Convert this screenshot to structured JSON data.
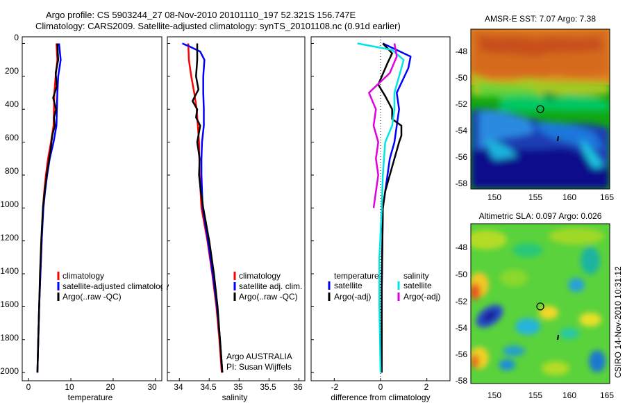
{
  "title_line1": "Argo profile: CS 5903244_27 08-Nov-2010 20101110_197 52.321S 156.747E",
  "title_line2": "Climatology: CARS2009. Satellite-adjusted climatology: synTS_20101108.nc (0.91d earlier)",
  "side_stamp": "CSIRO 14-Nov-2010 10:31:12",
  "colors": {
    "climatology": "#ff0000",
    "satellite": "#0000ff",
    "argo": "#000000",
    "salinity_sat": "#00e5e5",
    "salinity_argo": "#e000e0"
  },
  "chart_data": [
    {
      "type": "line",
      "xlabel": "temperature",
      "xlim": [
        -1.5,
        31.5
      ],
      "ylim": [
        2050,
        -40
      ],
      "x_ticks": [
        0,
        10,
        20,
        30
      ],
      "y_ticks": [
        0,
        200,
        400,
        600,
        800,
        1000,
        1200,
        1400,
        1600,
        1800,
        2000
      ],
      "legend": [
        "climatology",
        "satellite-adjusted climatology",
        "Argo(..raw -QC)"
      ],
      "series": [
        {
          "name": "climatology",
          "color": "#ff0000",
          "points": [
            [
              6.6,
              0
            ],
            [
              6.8,
              100
            ],
            [
              6.4,
              200
            ],
            [
              6.1,
              300
            ],
            [
              6.0,
              400
            ],
            [
              5.9,
              500
            ],
            [
              5.3,
              600
            ],
            [
              4.6,
              700
            ],
            [
              4.1,
              800
            ],
            [
              3.7,
              900
            ],
            [
              3.4,
              1000
            ],
            [
              3.1,
              1200
            ],
            [
              2.8,
              1400
            ],
            [
              2.5,
              1600
            ],
            [
              2.3,
              1800
            ],
            [
              2.1,
              2000
            ]
          ]
        },
        {
          "name": "satellite-adjusted climatology",
          "color": "#0000ff",
          "points": [
            [
              7.2,
              0
            ],
            [
              7.6,
              100
            ],
            [
              7.0,
              200
            ],
            [
              6.8,
              300
            ],
            [
              6.7,
              400
            ],
            [
              6.6,
              500
            ],
            [
              5.9,
              600
            ],
            [
              5.0,
              700
            ],
            [
              4.4,
              800
            ],
            [
              3.9,
              900
            ],
            [
              3.5,
              1000
            ],
            [
              3.1,
              1200
            ],
            [
              2.8,
              1400
            ],
            [
              2.5,
              1600
            ],
            [
              2.3,
              1800
            ],
            [
              2.1,
              2000
            ]
          ]
        },
        {
          "name": "Argo(..raw -QC)",
          "color": "#000000",
          "points": [
            [
              6.8,
              0
            ],
            [
              7.0,
              100
            ],
            [
              6.4,
              180
            ],
            [
              6.7,
              260
            ],
            [
              5.8,
              330
            ],
            [
              6.5,
              400
            ],
            [
              6.0,
              450
            ],
            [
              6.2,
              500
            ],
            [
              5.6,
              560
            ],
            [
              5.2,
              650
            ],
            [
              4.4,
              780
            ],
            [
              3.8,
              900
            ],
            [
              3.4,
              1000
            ],
            [
              3.0,
              1200
            ],
            [
              2.7,
              1400
            ],
            [
              2.5,
              1600
            ],
            [
              2.3,
              1800
            ],
            [
              2.1,
              2000
            ]
          ]
        }
      ]
    },
    {
      "type": "line",
      "xlabel": "salinity",
      "xlim": [
        33.8,
        36.1
      ],
      "ylim": [
        2050,
        -40
      ],
      "x_ticks": [
        34,
        34.5,
        35,
        35.5,
        36
      ],
      "legend": [
        "climatology",
        "satellite adj. clim.",
        "Argo(..raw -QC)"
      ],
      "annotation": [
        "Argo AUSTRALIA",
        "PI: Susan Wijffels"
      ],
      "series": [
        {
          "name": "climatology",
          "color": "#ff0000",
          "points": [
            [
              34.15,
              0
            ],
            [
              34.16,
              100
            ],
            [
              34.2,
              200
            ],
            [
              34.25,
              300
            ],
            [
              34.29,
              400
            ],
            [
              34.31,
              500
            ],
            [
              34.33,
              600
            ],
            [
              34.34,
              800
            ],
            [
              34.37,
              1000
            ],
            [
              34.47,
              1200
            ],
            [
              34.55,
              1400
            ],
            [
              34.62,
              1600
            ],
            [
              34.67,
              1800
            ],
            [
              34.71,
              2000
            ]
          ]
        },
        {
          "name": "satellite adj. clim.",
          "color": "#0000ff",
          "points": [
            [
              34.05,
              0
            ],
            [
              34.18,
              20
            ],
            [
              34.35,
              50
            ],
            [
              34.42,
              100
            ],
            [
              34.41,
              150
            ],
            [
              34.4,
              200
            ],
            [
              34.4,
              300
            ],
            [
              34.41,
              400
            ],
            [
              34.41,
              500
            ],
            [
              34.38,
              600
            ],
            [
              34.37,
              700
            ],
            [
              34.37,
              800
            ],
            [
              34.39,
              1000
            ],
            [
              34.48,
              1200
            ],
            [
              34.56,
              1400
            ],
            [
              34.63,
              1600
            ],
            [
              34.68,
              1800
            ],
            [
              34.72,
              2000
            ]
          ]
        },
        {
          "name": "Argo(..raw -QC)",
          "color": "#000000",
          "points": [
            [
              34.3,
              0
            ],
            [
              34.3,
              100
            ],
            [
              34.28,
              200
            ],
            [
              34.32,
              280
            ],
            [
              34.22,
              350
            ],
            [
              34.3,
              400
            ],
            [
              34.28,
              450
            ],
            [
              34.35,
              500
            ],
            [
              34.3,
              600
            ],
            [
              34.34,
              700
            ],
            [
              34.33,
              800
            ],
            [
              34.36,
              900
            ],
            [
              34.4,
              1000
            ],
            [
              34.45,
              1100
            ],
            [
              34.5,
              1200
            ],
            [
              34.58,
              1400
            ],
            [
              34.64,
              1600
            ],
            [
              34.68,
              1800
            ],
            [
              34.72,
              2000
            ]
          ]
        }
      ]
    },
    {
      "type": "line",
      "xlabel": "difference from climatology",
      "xlim": [
        -3,
        3
      ],
      "ylim": [
        2050,
        -40
      ],
      "x_ticks": [
        -2,
        0,
        2
      ],
      "legend_left": {
        "header": "temperature",
        "items": [
          "satellite",
          "Argo(-adj)"
        ]
      },
      "legend_right": {
        "header": "salinity",
        "items": [
          "satellite",
          "Argo(-adj)"
        ]
      },
      "series": [
        {
          "name": "temperature satellite",
          "color": "#0000ff",
          "points": [
            [
              0.1,
              0
            ],
            [
              1.3,
              80
            ],
            [
              1.2,
              150
            ],
            [
              0.7,
              300
            ],
            [
              0.8,
              400
            ],
            [
              0.7,
              500
            ],
            [
              0.6,
              600
            ],
            [
              0.4,
              700
            ],
            [
              0.3,
              800
            ],
            [
              0.2,
              900
            ],
            [
              0.1,
              1000
            ],
            [
              0.05,
              1500
            ],
            [
              0.05,
              2000
            ]
          ]
        },
        {
          "name": "temperature Argo(-adj)",
          "color": "#000000",
          "points": [
            [
              0.1,
              0
            ],
            [
              0.5,
              60
            ],
            [
              0.3,
              120
            ],
            [
              -0.1,
              250
            ],
            [
              0.2,
              320
            ],
            [
              0.5,
              400
            ],
            [
              0.5,
              460
            ],
            [
              0.9,
              500
            ],
            [
              0.9,
              560
            ],
            [
              0.8,
              600
            ],
            [
              0.6,
              700
            ],
            [
              0.4,
              800
            ],
            [
              0.2,
              900
            ],
            [
              0.1,
              1000
            ],
            [
              0.05,
              1500
            ],
            [
              0.05,
              2000
            ]
          ]
        },
        {
          "name": "salinity satellite",
          "color": "#00e5e5",
          "points": [
            [
              -1.0,
              0
            ],
            [
              0.5,
              40
            ],
            [
              1.0,
              100
            ],
            [
              0.8,
              200
            ],
            [
              0.6,
              300
            ],
            [
              0.6,
              400
            ],
            [
              0.5,
              500
            ],
            [
              0.2,
              600
            ],
            [
              0.1,
              800
            ],
            [
              0.05,
              1000
            ],
            [
              -0.05,
              1300
            ],
            [
              -0.05,
              1600
            ],
            [
              0,
              2000
            ]
          ]
        },
        {
          "name": "salinity Argo(-adj)",
          "color": "#e000e0",
          "points": [
            [
              0.6,
              0
            ],
            [
              0.7,
              80
            ],
            [
              0.4,
              180
            ],
            [
              -0.5,
              300
            ],
            [
              -0.2,
              400
            ],
            [
              -0.3,
              500
            ],
            [
              -0.1,
              600
            ],
            [
              -0.2,
              700
            ],
            [
              -0.1,
              800
            ],
            [
              -0.2,
              900
            ],
            [
              -0.3,
              1000
            ]
          ]
        }
      ]
    },
    {
      "type": "heatmap",
      "title": "AMSR-E SST: 7.07 Argo: 7.38",
      "x_ticks": [
        150,
        155,
        160,
        165
      ],
      "y_ticks": [
        -48,
        -50,
        -52,
        -54,
        -56,
        -58
      ],
      "xlim": [
        148.3,
        165.3
      ],
      "ylim": [
        -58.8,
        -46.2
      ],
      "argo_position": {
        "lon": 156.747,
        "lat": -52.321
      }
    },
    {
      "type": "heatmap",
      "title": "Altimetric SLA: 0.097 Argo: 0.026",
      "x_ticks": [
        150,
        155,
        160,
        165
      ],
      "y_ticks": [
        -48,
        -50,
        -52,
        -54,
        -56,
        -58
      ],
      "xlim": [
        148.3,
        165.3
      ],
      "ylim": [
        -58.8,
        -46.2
      ],
      "argo_position": {
        "lon": 156.747,
        "lat": -52.321
      }
    }
  ]
}
